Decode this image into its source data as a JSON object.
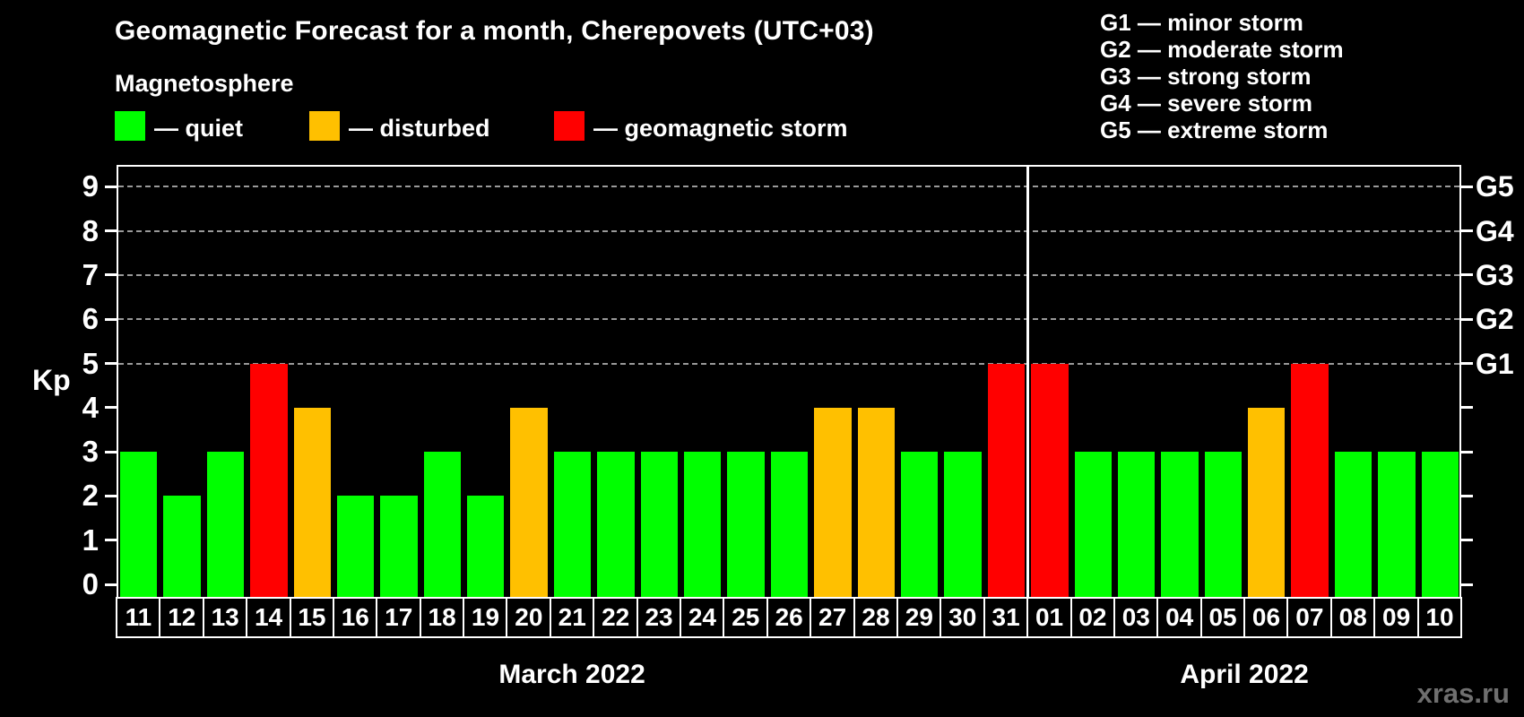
{
  "title": "Geomagnetic Forecast for a month, Cherepovets (UTC+03)",
  "legend": {
    "heading": "Magnetosphere",
    "items": [
      {
        "id": "quiet",
        "label": "— quiet",
        "color": "#00ff00"
      },
      {
        "id": "disturbed",
        "label": "— disturbed",
        "color": "#ffc000"
      },
      {
        "id": "storm",
        "label": "— geomagnetic storm",
        "color": "#ff0000"
      }
    ]
  },
  "storm_scale": [
    {
      "text": "G1 — minor storm"
    },
    {
      "text": "G2 — moderate storm"
    },
    {
      "text": "G3 — strong storm"
    },
    {
      "text": "G4 — severe storm"
    },
    {
      "text": "G5 — extreme storm"
    }
  ],
  "watermark": "xras.ru",
  "chart_data": {
    "type": "bar",
    "title": "Geomagnetic Forecast for a month, Cherepovets (UTC+03)",
    "ylabel": "Kp",
    "ylim": [
      0,
      9.5
    ],
    "y_ticks": [
      0,
      1,
      2,
      3,
      4,
      5,
      6,
      7,
      8,
      9
    ],
    "gridlines": [
      5,
      6,
      7,
      8,
      9
    ],
    "grid_style": "dashed gray horizontal lines at Kp 5-9 only",
    "right_axis_labels": [
      {
        "kp": 5,
        "label": "G1"
      },
      {
        "kp": 6,
        "label": "G2"
      },
      {
        "kp": 7,
        "label": "G3"
      },
      {
        "kp": 8,
        "label": "G4"
      },
      {
        "kp": 9,
        "label": "G5"
      }
    ],
    "status_colors": {
      "quiet": "#00ff00",
      "disturbed": "#ffc000",
      "storm": "#ff0000"
    },
    "categories": [
      "11",
      "12",
      "13",
      "14",
      "15",
      "16",
      "17",
      "18",
      "19",
      "20",
      "21",
      "22",
      "23",
      "24",
      "25",
      "26",
      "27",
      "28",
      "29",
      "30",
      "31",
      "01",
      "02",
      "03",
      "04",
      "05",
      "06",
      "07",
      "08",
      "09",
      "10"
    ],
    "values": [
      3,
      2,
      3,
      5,
      4,
      2,
      2,
      3,
      2,
      4,
      3,
      3,
      3,
      3,
      3,
      3,
      4,
      4,
      3,
      3,
      5,
      5,
      3,
      3,
      3,
      3,
      4,
      5,
      3,
      3,
      3
    ],
    "statuses": [
      "quiet",
      "quiet",
      "quiet",
      "storm",
      "disturbed",
      "quiet",
      "quiet",
      "quiet",
      "quiet",
      "disturbed",
      "quiet",
      "quiet",
      "quiet",
      "quiet",
      "quiet",
      "quiet",
      "disturbed",
      "disturbed",
      "quiet",
      "quiet",
      "storm",
      "storm",
      "quiet",
      "quiet",
      "quiet",
      "quiet",
      "disturbed",
      "storm",
      "quiet",
      "quiet",
      "quiet"
    ],
    "month_groups": [
      {
        "label": "March 2022",
        "count": 21
      },
      {
        "label": "April 2022",
        "count": 10
      }
    ],
    "legend_position": "top-left"
  }
}
